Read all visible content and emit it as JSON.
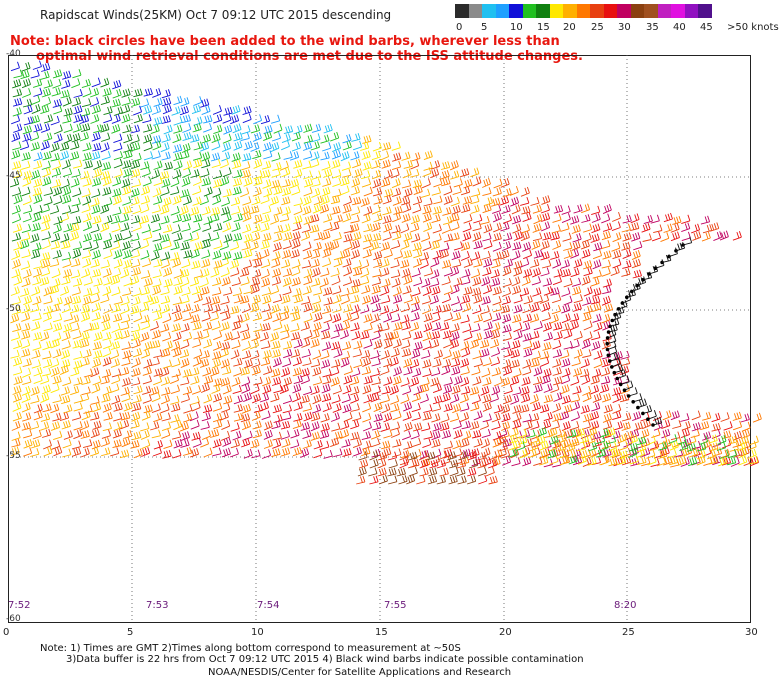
{
  "title": "Rapidscat Winds(25KM)  Oct  7 09:12 UTC 2015 descending",
  "note": {
    "line1": "Note: black circles have been added to the wind barbs, wherever less than",
    "line2": "optimal wind retrieval conditions are met due to the ISS attitude changes."
  },
  "scale": {
    "labels": [
      "0",
      "5",
      "10",
      "15",
      "20",
      "25",
      "30",
      "35",
      "40",
      "45",
      ">50 knots"
    ],
    "colors": [
      "#2b2b2b",
      "#8a8a8a",
      "#20c0f0",
      "#1fa0ff",
      "#1010d8",
      "#20c020",
      "#108010",
      "#ffe800",
      "#ffb000",
      "#ff7800",
      "#e84010",
      "#e81010",
      "#c00060",
      "#8b4010",
      "#a05020",
      "#c020c0",
      "#e010e0",
      "#9010c0",
      "#50108c"
    ]
  },
  "map": {
    "lat_labels": [
      "-40",
      "-45",
      "-50",
      "-55",
      "-60"
    ],
    "lon_labels": [
      "0",
      "5",
      "10",
      "15",
      "20",
      "25",
      "30"
    ],
    "time_labels": [
      "7:52",
      "7:53",
      "7:54",
      "7:55",
      "8:20"
    ],
    "lat_range": [
      -60,
      -40
    ],
    "lon_range": [
      0,
      30
    ],
    "grid": "dotted"
  },
  "footer": {
    "line1": "Note: 1) Times are GMT 2)Times along bottom correspond to measurement at ~50S",
    "line2": "3)Data buffer is 22 hrs from Oct  7 09:12 UTC 2015 4) Black wind barbs indicate possible contamination",
    "line3": "NOAA/NESDIS/Center for Satellite Applications and Research"
  }
}
